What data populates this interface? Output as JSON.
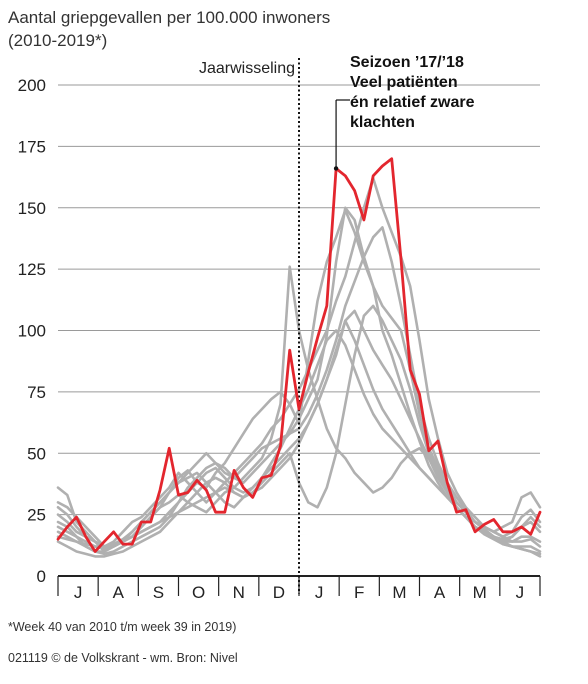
{
  "header": {
    "title_line1": "Aantal griepgevallen per 100.000 inwoners",
    "title_line2": "(2010-2019*)"
  },
  "footer": {
    "note": "*Week 40 van 2010 t/m week 39 in 2019)",
    "credit": "021119 © de Volkskrant - wm. Bron: Nivel"
  },
  "colors": {
    "highlight": "#e3262e",
    "background_series": "#b0b0b0",
    "grid": "#9a9a9a",
    "axis": "#222222"
  },
  "chart_data": {
    "type": "line",
    "title": "Aantal griepgevallen per 100.000 inwoners",
    "subtitle": "(2010-2019*)",
    "xlabel": "",
    "ylabel": "",
    "ylim": [
      0,
      200
    ],
    "yticks": [
      0,
      25,
      50,
      75,
      100,
      125,
      150,
      175,
      200
    ],
    "grid": true,
    "x_index_range": [
      0,
      52
    ],
    "month_labels": [
      "J",
      "A",
      "S",
      "O",
      "N",
      "D",
      "J",
      "F",
      "M",
      "A",
      "M",
      "J"
    ],
    "annotations": {
      "year_change": {
        "label": "Jaarwisseling",
        "x_index": 26
      },
      "callout_lines": [
        "Seizoen ’17/’18",
        "Veel patiënten",
        "én relatief zware",
        "klachten"
      ],
      "callout_point_index": 30
    },
    "highlight_series": {
      "name": "Seizoen ’17/’18",
      "values": [
        15,
        20,
        24,
        16,
        10,
        14,
        18,
        13,
        13,
        22,
        22,
        35,
        52,
        33,
        34,
        39,
        35,
        26,
        26,
        43,
        36,
        32,
        40,
        41,
        53,
        92,
        68,
        83,
        97,
        110,
        166,
        163,
        157,
        145,
        163,
        167,
        170,
        129,
        84,
        74,
        51,
        55,
        38,
        26,
        27,
        18,
        21,
        23,
        18,
        18,
        20,
        17,
        26
      ]
    },
    "series": [
      {
        "values": [
          36,
          33,
          22,
          18,
          14,
          10,
          12,
          14,
          16,
          20,
          24,
          28,
          34,
          40,
          43,
          38,
          36,
          42,
          46,
          52,
          58,
          64,
          68,
          72,
          75,
          70,
          62,
          88,
          112,
          128,
          138,
          149,
          140,
          128,
          118,
          100,
          90,
          78,
          66,
          55,
          45,
          38,
          32,
          28,
          24,
          22,
          20,
          18,
          20,
          22,
          32,
          34,
          28
        ]
      },
      {
        "values": [
          28,
          25,
          20,
          16,
          14,
          12,
          14,
          18,
          22,
          24,
          28,
          32,
          36,
          42,
          38,
          34,
          30,
          34,
          38,
          42,
          46,
          50,
          54,
          60,
          64,
          70,
          76,
          84,
          92,
          100,
          112,
          122,
          136,
          150,
          162,
          150,
          140,
          130,
          118,
          96,
          72,
          56,
          42,
          34,
          28,
          24,
          20,
          18,
          16,
          18,
          24,
          27,
          22
        ]
      },
      {
        "values": [
          22,
          20,
          16,
          12,
          10,
          10,
          12,
          14,
          16,
          20,
          24,
          28,
          30,
          33,
          30,
          28,
          26,
          30,
          34,
          36,
          40,
          44,
          48,
          56,
          70,
          126,
          100,
          84,
          72,
          60,
          52,
          48,
          42,
          38,
          34,
          36,
          40,
          46,
          50,
          52,
          48,
          42,
          34,
          28,
          24,
          20,
          18,
          16,
          14,
          16,
          20,
          22,
          18
        ]
      },
      {
        "values": [
          18,
          16,
          14,
          12,
          10,
          9,
          10,
          12,
          14,
          16,
          18,
          20,
          24,
          30,
          36,
          40,
          44,
          46,
          44,
          40,
          38,
          42,
          46,
          50,
          54,
          58,
          64,
          72,
          80,
          98,
          128,
          150,
          145,
          130,
          118,
          110,
          105,
          100,
          84,
          66,
          52,
          44,
          36,
          30,
          26,
          22,
          20,
          18,
          16,
          14,
          16,
          16,
          14
        ]
      },
      {
        "values": [
          25,
          22,
          18,
          16,
          14,
          12,
          13,
          15,
          18,
          22,
          26,
          30,
          34,
          38,
          42,
          46,
          50,
          46,
          42,
          40,
          44,
          48,
          52,
          54,
          56,
          58,
          60,
          66,
          74,
          84,
          96,
          110,
          120,
          130,
          138,
          142,
          128,
          110,
          90,
          70,
          56,
          46,
          38,
          32,
          27,
          22,
          19,
          16,
          13,
          12,
          11,
          10,
          8
        ]
      },
      {
        "values": [
          20,
          18,
          16,
          14,
          12,
          11,
          12,
          14,
          16,
          18,
          20,
          22,
          26,
          30,
          34,
          38,
          42,
          44,
          40,
          36,
          34,
          36,
          40,
          44,
          48,
          52,
          56,
          62,
          70,
          80,
          90,
          104,
          108,
          100,
          92,
          86,
          80,
          72,
          64,
          56,
          48,
          40,
          34,
          28,
          24,
          20,
          18,
          16,
          14,
          14,
          14,
          15,
          12
        ]
      },
      {
        "values": [
          14,
          12,
          10,
          9,
          8,
          8,
          9,
          10,
          12,
          14,
          16,
          18,
          22,
          26,
          30,
          34,
          38,
          40,
          38,
          34,
          32,
          34,
          38,
          42,
          46,
          50,
          38,
          30,
          28,
          36,
          50,
          70,
          90,
          106,
          110,
          104,
          96,
          88,
          76,
          62,
          50,
          42,
          36,
          30,
          26,
          22,
          19,
          16,
          14,
          12,
          11,
          10,
          9
        ]
      },
      {
        "values": [
          30,
          28,
          24,
          20,
          16,
          12,
          12,
          14,
          18,
          22,
          26,
          30,
          34,
          38,
          40,
          42,
          38,
          34,
          30,
          28,
          32,
          36,
          40,
          46,
          52,
          60,
          68,
          76,
          86,
          96,
          100,
          94,
          84,
          74,
          66,
          60,
          56,
          52,
          48,
          44,
          40,
          36,
          32,
          28,
          24,
          20,
          18,
          16,
          15,
          16,
          20,
          24,
          20
        ]
      },
      {
        "values": [
          16,
          15,
          14,
          13,
          12,
          12,
          13,
          14,
          16,
          18,
          20,
          22,
          24,
          26,
          28,
          30,
          32,
          34,
          36,
          34,
          32,
          34,
          36,
          40,
          44,
          48,
          54,
          62,
          70,
          80,
          92,
          104,
          96,
          86,
          76,
          68,
          62,
          56,
          50,
          44,
          40,
          36,
          32,
          28,
          24,
          20,
          17,
          15,
          13,
          12,
          12,
          12,
          10
        ]
      }
    ]
  }
}
